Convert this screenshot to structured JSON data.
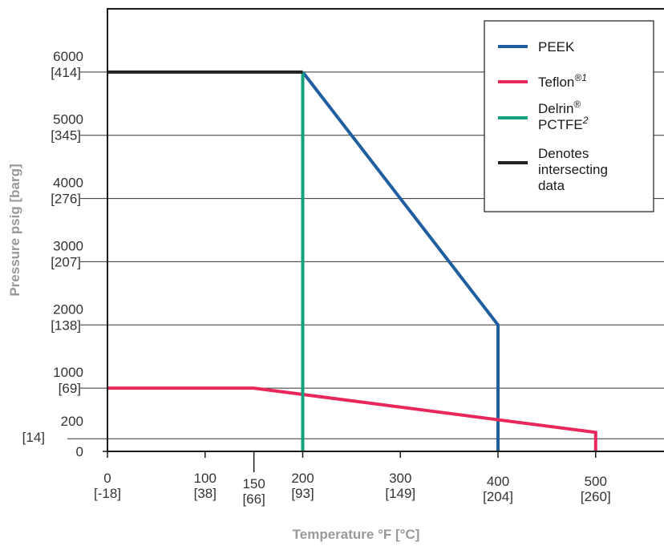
{
  "chart_data": {
    "type": "line",
    "xlabel": "Temperature °F [°C]",
    "ylabel": "Pressure psig [barg]",
    "xlim": [
      0,
      570
    ],
    "ylim": [
      0,
      7000
    ],
    "grid": "horizontal",
    "legend_position": "top-right",
    "x_ticks": [
      {
        "value": 0,
        "label": "0",
        "sublabel": "[-18]"
      },
      {
        "value": 100,
        "label": "100",
        "sublabel": "[38]"
      },
      {
        "value": 150,
        "label": "150",
        "sublabel": "[66]"
      },
      {
        "value": 200,
        "label": "200",
        "sublabel": "[93]"
      },
      {
        "value": 300,
        "label": "300",
        "sublabel": "[149]"
      },
      {
        "value": 400,
        "label": "400",
        "sublabel": "[204]"
      },
      {
        "value": 500,
        "label": "500",
        "sublabel": "[260]"
      }
    ],
    "y_ticks": [
      {
        "value": 0,
        "label": "0",
        "sublabel": ""
      },
      {
        "value": 200,
        "label": "200",
        "sublabel": "[14]"
      },
      {
        "value": 1000,
        "label": "1000",
        "sublabel": "[69]"
      },
      {
        "value": 2000,
        "label": "2000",
        "sublabel": "[138]"
      },
      {
        "value": 3000,
        "label": "3000",
        "sublabel": "[207]"
      },
      {
        "value": 4000,
        "label": "4000",
        "sublabel": "[276]"
      },
      {
        "value": 5000,
        "label": "5000",
        "sublabel": "[345]"
      },
      {
        "value": 6000,
        "label": "6000",
        "sublabel": "[414]"
      }
    ],
    "series": [
      {
        "name": "PEEK",
        "color": "#1f5fa0",
        "x": [
          200,
          400,
          400
        ],
        "y": [
          6000,
          2000,
          0
        ]
      },
      {
        "name": "Teflon",
        "name_sup": "®1",
        "color": "#e8275a",
        "x": [
          0,
          150,
          500,
          500
        ],
        "y": [
          1000,
          1000,
          300,
          0
        ]
      },
      {
        "name": "Delrin",
        "name_sup": "®",
        "name_line2": "PCTFE",
        "name_line2_sup": "2",
        "color": "#12a07e",
        "x": [
          200,
          200
        ],
        "y": [
          6000,
          0
        ]
      },
      {
        "name": "Denotes",
        "name_line2": "intersecting",
        "name_line3": "data",
        "color": "#222222",
        "x": [
          0,
          200
        ],
        "y": [
          6000,
          6000
        ]
      }
    ]
  }
}
